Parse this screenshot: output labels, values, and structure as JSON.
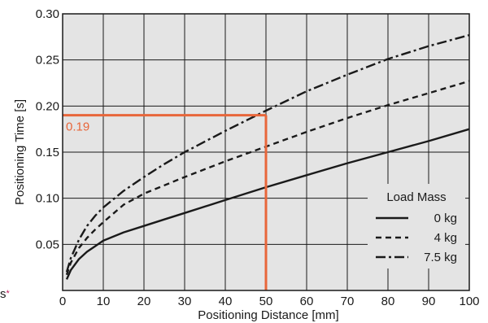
{
  "colors": {
    "plot_background": "#e4e4e4",
    "grid": "#1a1a1a",
    "series_line": "#1a1a1a",
    "highlight": "#e8663a",
    "asterisk": "#c2185b"
  },
  "corner_text": "s",
  "corner_asterisk": "*",
  "chart_data": {
    "type": "line",
    "title": "",
    "xlabel": "Positioning Distance [mm]",
    "ylabel": "Positioning Time [s]",
    "xlim": [
      0,
      100
    ],
    "ylim": [
      0,
      0.3
    ],
    "xticks": [
      0,
      10,
      20,
      30,
      40,
      50,
      60,
      70,
      80,
      90,
      100
    ],
    "xtick_labels": [
      "0",
      "10",
      "20",
      "30",
      "40",
      "50",
      "60",
      "70",
      "80",
      "90",
      "100"
    ],
    "yticks": [
      0.05,
      0.1,
      0.15,
      0.2,
      0.25,
      0.3
    ],
    "ytick_labels": [
      "0.05",
      "0.10",
      "0.15",
      "0.20",
      "0.25",
      "0.30"
    ],
    "grid": true,
    "legend": {
      "title": "Load Mass",
      "placement": "bottom-right"
    },
    "series": [
      {
        "name": "0 kg",
        "style": "solid",
        "x": [
          1,
          2,
          4,
          6,
          8,
          10,
          15,
          20,
          25,
          30,
          40,
          50,
          60,
          70,
          80,
          90,
          100
        ],
        "y": [
          0.012,
          0.022,
          0.034,
          0.042,
          0.048,
          0.054,
          0.063,
          0.07,
          0.077,
          0.084,
          0.098,
          0.112,
          0.125,
          0.138,
          0.15,
          0.162,
          0.175
        ]
      },
      {
        "name": "4 kg",
        "style": "dashed",
        "x": [
          1,
          2,
          4,
          6,
          8,
          10,
          15,
          20,
          25,
          30,
          40,
          50,
          60,
          70,
          80,
          90,
          100
        ],
        "y": [
          0.017,
          0.03,
          0.046,
          0.057,
          0.066,
          0.074,
          0.093,
          0.105,
          0.114,
          0.123,
          0.14,
          0.156,
          0.172,
          0.187,
          0.201,
          0.214,
          0.227
        ]
      },
      {
        "name": "7.5 kg",
        "style": "dashdot",
        "x": [
          1,
          2,
          4,
          6,
          8,
          10,
          15,
          20,
          25,
          30,
          40,
          50,
          60,
          70,
          80,
          90,
          100
        ],
        "y": [
          0.02,
          0.035,
          0.055,
          0.07,
          0.081,
          0.09,
          0.108,
          0.123,
          0.137,
          0.15,
          0.173,
          0.195,
          0.216,
          0.234,
          0.251,
          0.265,
          0.277
        ]
      }
    ],
    "annotation": {
      "x": 50,
      "y": 0.19,
      "label": "0.19"
    }
  }
}
